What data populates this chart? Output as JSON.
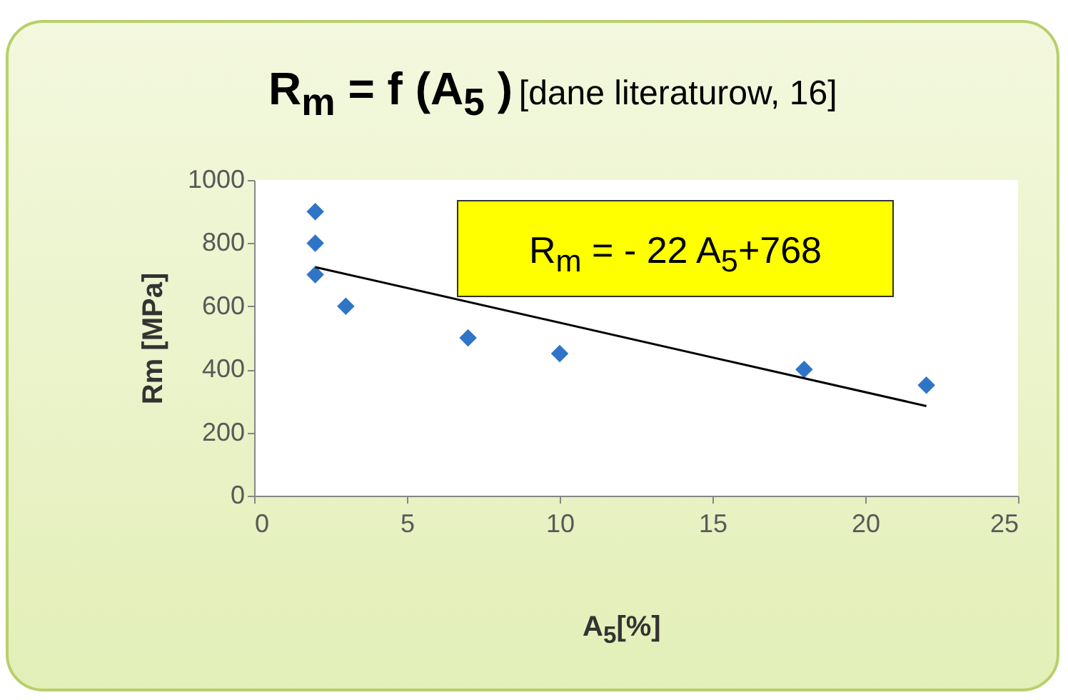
{
  "chart_data": {
    "type": "scatter",
    "title": "R$_{m}$ = f (A$_{5}$ )",
    "subtitle": "[dane literaturow, 16]",
    "xlabel": "A$_{5}$[%]",
    "ylabel": "Rm [MPa]",
    "annotations": [
      "R$_{m}$ = - 22 A$_{5}$+768"
    ],
    "series": [
      {
        "marker": "diamond",
        "color": "#2e75c8",
        "x": [
          2,
          2,
          2,
          3,
          7,
          10,
          18,
          22
        ],
        "values": [
          900,
          800,
          700,
          600,
          500,
          450,
          400,
          350
        ]
      },
      {
        "type": "line",
        "color": "#000000",
        "x": [
          2,
          22
        ],
        "values": [
          724,
          284
        ]
      }
    ],
    "xlim": [
      0,
      25
    ],
    "ylim": [
      0,
      1000
    ],
    "xticks": [
      0,
      5,
      10,
      15,
      20,
      25
    ],
    "yticks": [
      0,
      200,
      400,
      600,
      800,
      1000
    ]
  }
}
